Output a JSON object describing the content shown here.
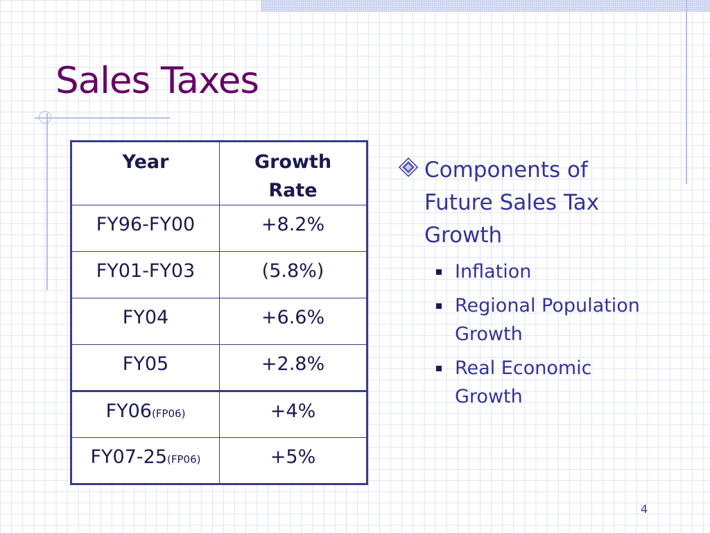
{
  "slide": {
    "title": "Sales Taxes",
    "page_number": "4"
  },
  "table": {
    "headers": [
      "Year",
      "Growth Rate"
    ],
    "header_growth_line1": "Growth",
    "header_growth_line2": "Rate",
    "rows": [
      {
        "year": "FY96-FY00",
        "note": "",
        "rate": "+8.2%"
      },
      {
        "year": "FY01-FY03",
        "note": "",
        "rate": "(5.8%)"
      },
      {
        "year": "FY04",
        "note": "",
        "rate": "+6.6%"
      },
      {
        "year": "FY05",
        "note": "",
        "rate": "+2.8%"
      },
      {
        "year": "FY06",
        "note": "(FP06)",
        "rate": "+4%"
      },
      {
        "year": "FY07-25",
        "note": "(FP06)",
        "rate": "+5%"
      }
    ]
  },
  "bullets": {
    "main_line1": "Components of",
    "main_line2": "Future Sales Tax",
    "main_line3": "Growth",
    "sub_items": [
      {
        "line1": "Inflation",
        "line2": ""
      },
      {
        "line1": "Regional Population",
        "line2": "Growth"
      },
      {
        "line1": "Real Economic",
        "line2": "Growth"
      }
    ]
  },
  "colors": {
    "title": "#660066",
    "text": "#333399",
    "table_border": "#3c3c8a",
    "grid": "#dfe3f2"
  }
}
